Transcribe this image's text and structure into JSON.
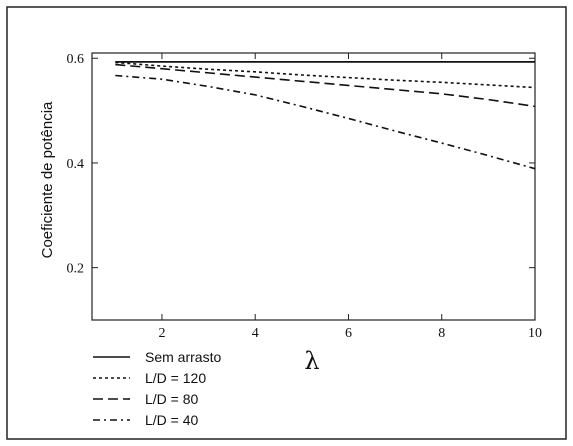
{
  "chart_data": {
    "type": "line",
    "title": "",
    "xlabel": "λ",
    "ylabel": "Coeficiente de potência",
    "xlim": [
      0.5,
      10
    ],
    "ylim": [
      0.1,
      0.61
    ],
    "x_ticks": [
      "2",
      "4",
      "6",
      "8",
      "10"
    ],
    "y_ticks": [
      "0.2",
      "0.4",
      "0.6"
    ],
    "grid": false,
    "legend_position": "bottom-left",
    "series": [
      {
        "name": "Sem arrasto",
        "style": "solid",
        "x": [
          1,
          2,
          3,
          4,
          5,
          6,
          7,
          8,
          9,
          10
        ],
        "y": [
          0.593,
          0.593,
          0.593,
          0.593,
          0.593,
          0.593,
          0.593,
          0.593,
          0.593,
          0.593
        ]
      },
      {
        "name": "L/D = 120",
        "style": "dotted",
        "x": [
          1,
          2,
          3,
          4,
          5,
          6,
          7,
          8,
          9,
          10
        ],
        "y": [
          0.592,
          0.585,
          0.579,
          0.574,
          0.568,
          0.563,
          0.558,
          0.554,
          0.549,
          0.544
        ]
      },
      {
        "name": "L/D = 80",
        "style": "dashed",
        "x": [
          1,
          2,
          3,
          4,
          5,
          6,
          7,
          8,
          9,
          10
        ],
        "y": [
          0.588,
          0.58,
          0.572,
          0.564,
          0.556,
          0.548,
          0.54,
          0.532,
          0.521,
          0.508
        ]
      },
      {
        "name": "L/D = 40",
        "style": "dashdot",
        "x": [
          1,
          2,
          3,
          4,
          5,
          6,
          7,
          8,
          9,
          10
        ],
        "y": [
          0.567,
          0.56,
          0.546,
          0.53,
          0.508,
          0.485,
          0.461,
          0.438,
          0.414,
          0.389
        ]
      }
    ]
  },
  "colors": {
    "line": "#111111",
    "frame": "#222222",
    "background": "#ffffff"
  }
}
